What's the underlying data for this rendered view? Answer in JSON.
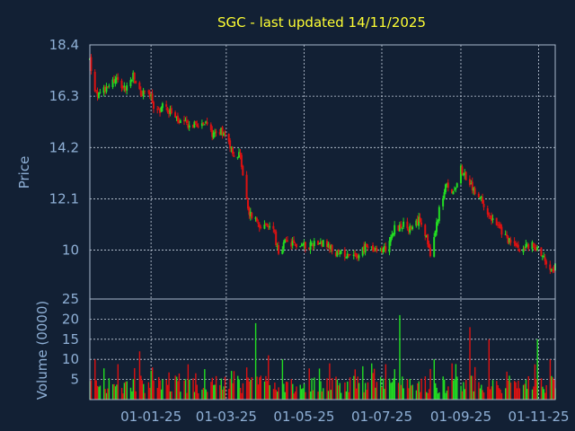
{
  "chart_data": [
    {
      "type": "candlestick",
      "title": "SGC - last updated 14/11/2025",
      "ylabel": "Price",
      "ylim": [
        8.0,
        18.4
      ],
      "yticks": [
        "18.4",
        "16.3",
        "14.2",
        "12.1",
        "10"
      ],
      "ytick_values": [
        18.4,
        16.3,
        14.2,
        12.1,
        10.0
      ],
      "grid": true,
      "colors": {
        "up": "#22dd22",
        "down": "#dd1111",
        "background": "#122034",
        "title": "#ffff33",
        "text": "#8fb0d6"
      },
      "price_path": [
        [
          "2024-11-14",
          17.8
        ],
        [
          "2024-11-18",
          16.4
        ],
        [
          "2024-11-22",
          16.3
        ],
        [
          "2024-11-28",
          16.8
        ],
        [
          "2024-12-05",
          17.0
        ],
        [
          "2024-12-12",
          16.6
        ],
        [
          "2024-12-18",
          17.1
        ],
        [
          "2024-12-24",
          16.4
        ],
        [
          "2024-12-30",
          16.5
        ],
        [
          "2025-01-05",
          15.6
        ],
        [
          "2025-01-10",
          15.9
        ],
        [
          "2025-01-16",
          15.7
        ],
        [
          "2025-01-23",
          15.2
        ],
        [
          "2025-02-03",
          15.1
        ],
        [
          "2025-02-10",
          15.3
        ],
        [
          "2025-02-18",
          14.8
        ],
        [
          "2025-02-26",
          14.9
        ],
        [
          "2025-03-03",
          14.5
        ],
        [
          "2025-03-07",
          13.8
        ],
        [
          "2025-03-12",
          13.9
        ],
        [
          "2025-03-18",
          11.6
        ],
        [
          "2025-03-25",
          11.2
        ],
        [
          "2025-03-31",
          10.9
        ],
        [
          "2025-04-07",
          11.0
        ],
        [
          "2025-04-11",
          9.7
        ],
        [
          "2025-04-16",
          10.3
        ],
        [
          "2025-04-25",
          10.2
        ],
        [
          "2025-05-05",
          10.2
        ],
        [
          "2025-05-13",
          10.4
        ],
        [
          "2025-05-20",
          10.1
        ],
        [
          "2025-05-28",
          9.8
        ],
        [
          "2025-06-05",
          9.9
        ],
        [
          "2025-06-12",
          9.8
        ],
        [
          "2025-06-20",
          10.2
        ],
        [
          "2025-06-27",
          9.9
        ],
        [
          "2025-07-04",
          10.1
        ],
        [
          "2025-07-11",
          10.9
        ],
        [
          "2025-07-18",
          11.0
        ],
        [
          "2025-07-25",
          10.8
        ],
        [
          "2025-07-31",
          11.3
        ],
        [
          "2025-08-05",
          10.6
        ],
        [
          "2025-08-08",
          9.6
        ],
        [
          "2025-08-14",
          11.4
        ],
        [
          "2025-08-20",
          12.6
        ],
        [
          "2025-08-26",
          12.4
        ],
        [
          "2025-09-01",
          13.4
        ],
        [
          "2025-09-07",
          12.7
        ],
        [
          "2025-09-14",
          12.3
        ],
        [
          "2025-09-21",
          11.7
        ],
        [
          "2025-09-28",
          11.1
        ],
        [
          "2025-10-05",
          10.6
        ],
        [
          "2025-10-12",
          10.2
        ],
        [
          "2025-10-19",
          10.1
        ],
        [
          "2025-10-26",
          10.2
        ],
        [
          "2025-11-02",
          10.0
        ],
        [
          "2025-11-08",
          9.4
        ],
        [
          "2025-11-14",
          9.3
        ]
      ]
    },
    {
      "type": "bar",
      "ylabel": "Volume (0000)",
      "ylim": [
        0,
        25
      ],
      "yticks": [
        "25",
        "20",
        "15",
        "10",
        "5"
      ],
      "ytick_values": [
        25,
        20,
        15,
        10,
        5
      ],
      "grid": true,
      "spikes": [
        [
          "2024-11-18",
          10
        ],
        [
          "2024-12-22",
          12
        ],
        [
          "2025-01-03",
          8
        ],
        [
          "2025-03-24",
          19
        ],
        [
          "2025-04-04",
          11
        ],
        [
          "2025-04-14",
          10
        ],
        [
          "2025-05-22",
          9
        ],
        [
          "2025-06-23",
          9
        ],
        [
          "2025-07-16",
          21
        ],
        [
          "2025-08-12",
          10
        ],
        [
          "2025-08-26",
          9
        ],
        [
          "2025-09-08",
          18
        ],
        [
          "2025-09-24",
          15
        ],
        [
          "2025-11-01",
          15
        ],
        [
          "2025-11-10",
          10
        ]
      ],
      "typical_range": [
        1.5,
        6
      ]
    }
  ],
  "xaxis": {
    "start": "2024-11-14",
    "end": "2025-11-14",
    "ticks": [
      {
        "date": "2025-01-01",
        "label": "01-01-25"
      },
      {
        "date": "2025-03-01",
        "label": "01-03-25"
      },
      {
        "date": "2025-05-01",
        "label": "01-05-25"
      },
      {
        "date": "2025-07-01",
        "label": "01-07-25"
      },
      {
        "date": "2025-09-01",
        "label": "01-09-25"
      },
      {
        "date": "2025-11-01",
        "label": "01-11-25"
      }
    ]
  }
}
